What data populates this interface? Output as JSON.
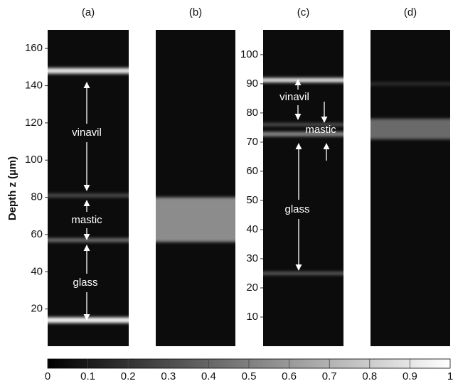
{
  "chart_data": [
    {
      "type": "image",
      "title": "(a)",
      "ylabel": "Depth z (µm)",
      "ylim": [
        0,
        170
      ],
      "yticks": [
        20,
        40,
        60,
        80,
        100,
        120,
        140,
        160
      ],
      "colormap": "gray",
      "bands": [
        {
          "top": 149.5,
          "bottom": 146.5,
          "intensity": 0.9
        },
        {
          "top": 82,
          "bottom": 80,
          "intensity": 0.3
        },
        {
          "top": 58,
          "bottom": 56,
          "intensity": 0.45
        },
        {
          "top": 15.5,
          "bottom": 12.5,
          "intensity": 0.95
        }
      ],
      "annotations": [
        "vinavil",
        "mastic",
        "glass"
      ]
    },
    {
      "type": "image",
      "title": "(b)",
      "ylim": [
        0,
        170
      ],
      "colormap": "gray",
      "bands": [
        {
          "top": 80,
          "bottom": 56,
          "intensity": 0.55
        }
      ]
    },
    {
      "type": "image",
      "title": "(c)",
      "ylim": [
        0,
        108.5
      ],
      "yticks": [
        10,
        20,
        30,
        40,
        50,
        60,
        70,
        80,
        90,
        100
      ],
      "colormap": "gray",
      "bands": [
        {
          "top": 92,
          "bottom": 90.5,
          "intensity": 0.9
        },
        {
          "top": 76.5,
          "bottom": 75.5,
          "intensity": 0.35
        },
        {
          "top": 73.5,
          "bottom": 72,
          "intensity": 0.55
        },
        {
          "top": 25.5,
          "bottom": 24.5,
          "intensity": 0.4
        }
      ],
      "annotations": [
        "vinavil",
        "mastic",
        "glass"
      ]
    },
    {
      "type": "image",
      "title": "(d)",
      "ylim": [
        0,
        108.5
      ],
      "colormap": "gray",
      "bands": [
        {
          "top": 78,
          "bottom": 71,
          "intensity": 0.42
        },
        {
          "top": 90.5,
          "bottom": 89.5,
          "intensity": 0.2
        }
      ]
    }
  ],
  "colorbar": {
    "lim": [
      0,
      1
    ],
    "ticks": [
      0,
      0.1,
      0.2,
      0.3,
      0.4,
      0.5,
      0.6,
      0.7,
      0.8,
      0.9,
      1
    ],
    "colormap": "gray"
  }
}
